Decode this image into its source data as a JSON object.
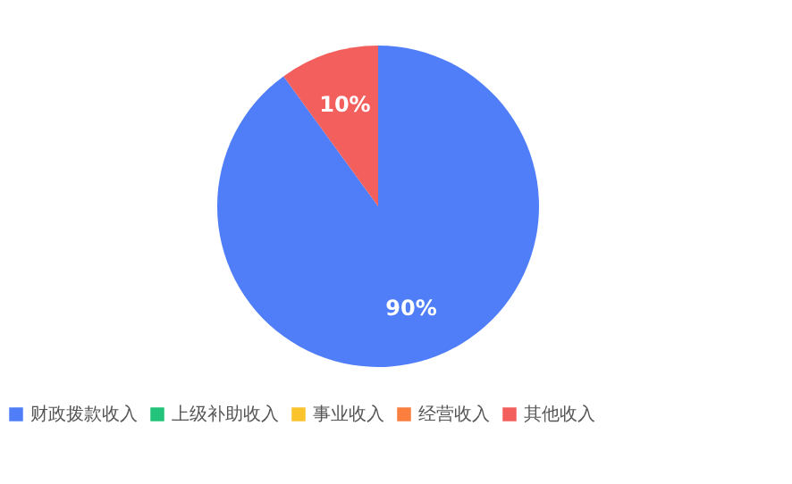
{
  "chart_data": {
    "type": "pie",
    "categories": [
      "财政拨款收入",
      "上级补助收入",
      "事业收入",
      "经营收入",
      "其他收入"
    ],
    "values": [
      90,
      0,
      0,
      0,
      10
    ],
    "colors": [
      "#4f7ef8",
      "#22c37a",
      "#fac22b",
      "#fb7e3f",
      "#f25f5c"
    ],
    "value_labels": [
      "90%",
      null,
      null,
      null,
      "10%"
    ],
    "legend": "bottom"
  }
}
